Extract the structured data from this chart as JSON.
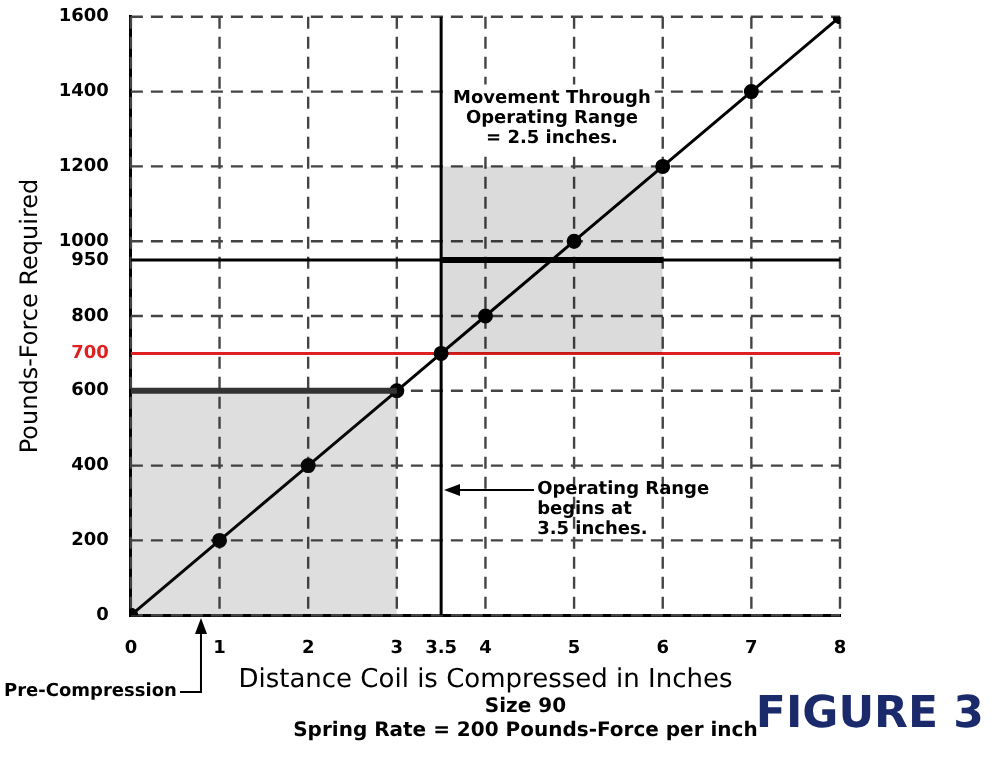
{
  "chart_data": {
    "type": "line",
    "xlabel": "Distance Coil is Compressed in Inches",
    "ylabel": "Pounds-Force Required",
    "xlim": [
      0,
      8
    ],
    "xticks": [
      0,
      1,
      2,
      3,
      3.5,
      4,
      5,
      6,
      7,
      8
    ],
    "ylim": [
      0,
      1600
    ],
    "yticks": [
      0,
      200,
      400,
      600,
      700,
      800,
      950,
      1000,
      1200,
      1400,
      1600
    ],
    "grid": true,
    "series": [
      {
        "type": "area",
        "color": "#333333",
        "x": [
          0,
          3
        ],
        "values": [
          600,
          600
        ]
      },
      {
        "type": "line",
        "color": "#000000",
        "x": [
          3.5,
          6
        ],
        "values": [
          950,
          950
        ],
        "lower": [
          700,
          700
        ],
        "upper": [
          1200,
          1200
        ]
      },
      {
        "color": "#000000",
        "marker": "circle",
        "x": [
          0,
          1,
          2,
          3,
          3.5,
          4,
          5,
          6,
          7,
          8
        ],
        "values": [
          0,
          200,
          400,
          600,
          700,
          800,
          1000,
          1200,
          1400,
          1600
        ]
      }
    ],
    "ref_lines": [
      {
        "axis": "y",
        "value": 700,
        "color": "#e02020"
      },
      {
        "axis": "y",
        "value": 950,
        "color": "#000000"
      },
      {
        "axis": "x",
        "value": 3.5,
        "color": "#000000"
      }
    ],
    "annotations": [
      {
        "text": "Movement Through\nOperating Range\n= 2.5 inches.",
        "x": 4.75,
        "y": 1200
      },
      "Operating Range\nbegins at\n3.5 inches.",
      "Pre-Compression",
      "Size 90",
      "Spring Rate = 200 Pounds-Force per inch",
      "FIGURE 3"
    ]
  }
}
